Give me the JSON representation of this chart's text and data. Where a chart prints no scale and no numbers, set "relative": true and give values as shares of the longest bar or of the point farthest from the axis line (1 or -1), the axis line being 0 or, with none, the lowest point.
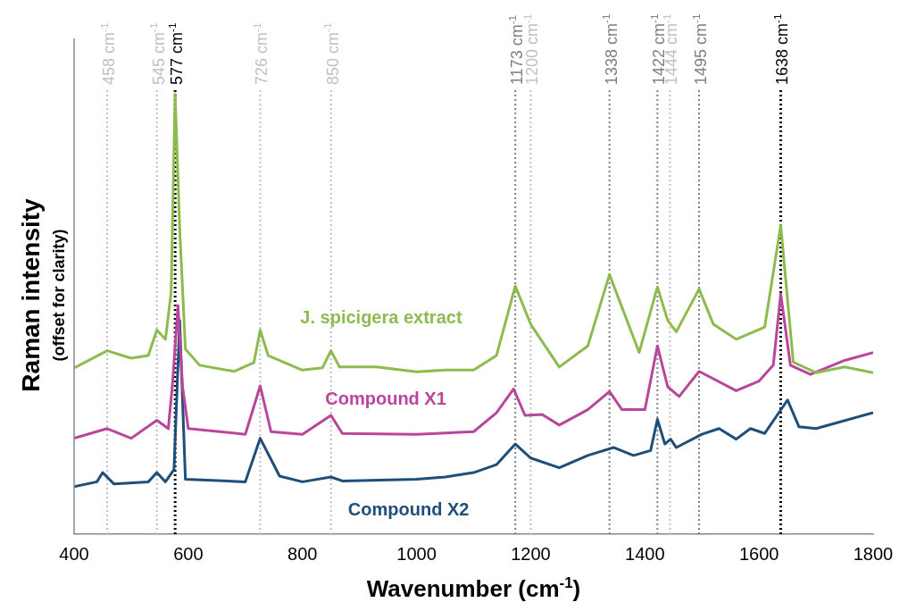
{
  "chart_data": {
    "type": "line",
    "relative": true,
    "xlabel": "Wavenumber (cm$^{-1}$)",
    "ylabel": "Raman intensity",
    "annotations": [
      "(offset for clarity)"
    ],
    "xlim": [
      400,
      1800
    ],
    "xticks": [
      400,
      600,
      800,
      1000,
      1200,
      1400,
      1600,
      1800
    ],
    "grid": false,
    "legend": false,
    "marker": "none",
    "line_style": "solid",
    "series": [
      {
        "name": "J. spicigera extract",
        "color": "#8dbb4f",
        "x": [
          400,
          458,
          500,
          530,
          545,
          560,
          570,
          577,
          585,
          595,
          620,
          680,
          715,
          726,
          740,
          800,
          835,
          850,
          865,
          930,
          1000,
          1050,
          1100,
          1140,
          1173,
          1200,
          1250,
          1300,
          1338,
          1390,
          1422,
          1440,
          1455,
          1495,
          1520,
          1560,
          1610,
          1638,
          1660,
          1700,
          1750,
          1800
        ],
        "values": [
          0.378,
          0.417,
          0.4,
          0.406,
          0.464,
          0.443,
          0.55,
          1.0,
          0.693,
          0.421,
          0.384,
          0.37,
          0.39,
          0.464,
          0.406,
          0.373,
          0.378,
          0.417,
          0.38,
          0.38,
          0.369,
          0.373,
          0.373,
          0.406,
          0.564,
          0.477,
          0.38,
          0.428,
          0.59,
          0.413,
          0.562,
          0.486,
          0.46,
          0.557,
          0.477,
          0.443,
          0.471,
          0.702,
          0.391,
          0.367,
          0.38,
          0.367
        ]
      },
      {
        "name": "Compound X1",
        "color": "#b9469b",
        "x": [
          400,
          458,
          500,
          545,
          565,
          572,
          582,
          590,
          600,
          700,
          726,
          745,
          800,
          850,
          870,
          1000,
          1100,
          1140,
          1170,
          1190,
          1220,
          1250,
          1300,
          1338,
          1360,
          1400,
          1422,
          1440,
          1460,
          1495,
          1560,
          1600,
          1625,
          1638,
          1655,
          1690,
          1750,
          1800
        ],
        "values": [
          0.218,
          0.24,
          0.218,
          0.259,
          0.24,
          0.335,
          0.52,
          0.335,
          0.24,
          0.227,
          0.337,
          0.233,
          0.227,
          0.27,
          0.229,
          0.227,
          0.233,
          0.276,
          0.33,
          0.27,
          0.272,
          0.248,
          0.283,
          0.324,
          0.283,
          0.283,
          0.428,
          0.335,
          0.313,
          0.37,
          0.326,
          0.348,
          0.384,
          0.546,
          0.384,
          0.363,
          0.395,
          0.413
        ]
      },
      {
        "name": "Compound X2",
        "color": "#1f4e79",
        "x": [
          400,
          440,
          450,
          470,
          530,
          545,
          560,
          575,
          585,
          595,
          700,
          726,
          760,
          800,
          850,
          870,
          1000,
          1050,
          1100,
          1140,
          1173,
          1200,
          1250,
          1300,
          1345,
          1380,
          1410,
          1422,
          1435,
          1445,
          1455,
          1500,
          1530,
          1560,
          1585,
          1610,
          1650,
          1670,
          1700,
          1800
        ],
        "values": [
          0.108,
          0.119,
          0.14,
          0.114,
          0.119,
          0.14,
          0.119,
          0.147,
          0.486,
          0.125,
          0.119,
          0.218,
          0.132,
          0.119,
          0.13,
          0.121,
          0.125,
          0.13,
          0.14,
          0.158,
          0.205,
          0.173,
          0.151,
          0.179,
          0.197,
          0.179,
          0.19,
          0.261,
          0.205,
          0.216,
          0.197,
          0.227,
          0.24,
          0.216,
          0.24,
          0.229,
          0.305,
          0.244,
          0.24,
          0.276
        ]
      }
    ],
    "ref_lines": [
      {
        "axis": "x",
        "value": 458,
        "label": "458 cm$^{-1}$",
        "color": "#c0c0c0",
        "line_style": "dotted"
      },
      {
        "axis": "x",
        "value": 545,
        "label": "545 cm$^{-1}$",
        "color": "#c0c0c0",
        "line_style": "dotted"
      },
      {
        "axis": "x",
        "value": 577,
        "label": "577 cm$^{-1}$",
        "color": "#000000",
        "line_style": "dotted"
      },
      {
        "axis": "x",
        "value": 726,
        "label": "726 cm$^{-1}$",
        "color": "#c0c0c0",
        "line_style": "dotted"
      },
      {
        "axis": "x",
        "value": 850,
        "label": "850 cm$^{-1}$",
        "color": "#c0c0c0",
        "line_style": "dotted"
      },
      {
        "axis": "x",
        "value": 1173,
        "label": "1173 cm$^{-1}$",
        "color": "#7f7f7f",
        "line_style": "dotted"
      },
      {
        "axis": "x",
        "value": 1200,
        "label": "1200 cm$^{-1}$",
        "color": "#c0c0c0",
        "line_style": "dotted"
      },
      {
        "axis": "x",
        "value": 1338,
        "label": "1338 cm$^{-1}$",
        "color": "#7f7f7f",
        "line_style": "dotted"
      },
      {
        "axis": "x",
        "value": 1422,
        "label": "1422 cm$^{-1}$",
        "color": "#7f7f7f",
        "line_style": "dotted"
      },
      {
        "axis": "x",
        "value": 1444,
        "label": "1444 cm$^{-1}$",
        "color": "#c0c0c0",
        "line_style": "dotted"
      },
      {
        "axis": "x",
        "value": 1495,
        "label": "1495 cm$^{-1}$",
        "color": "#7f7f7f",
        "line_style": "dotted"
      },
      {
        "axis": "x",
        "value": 1638,
        "label": "1638 cm$^{-1}$",
        "color": "#000000",
        "line_style": "dotted"
      }
    ]
  }
}
